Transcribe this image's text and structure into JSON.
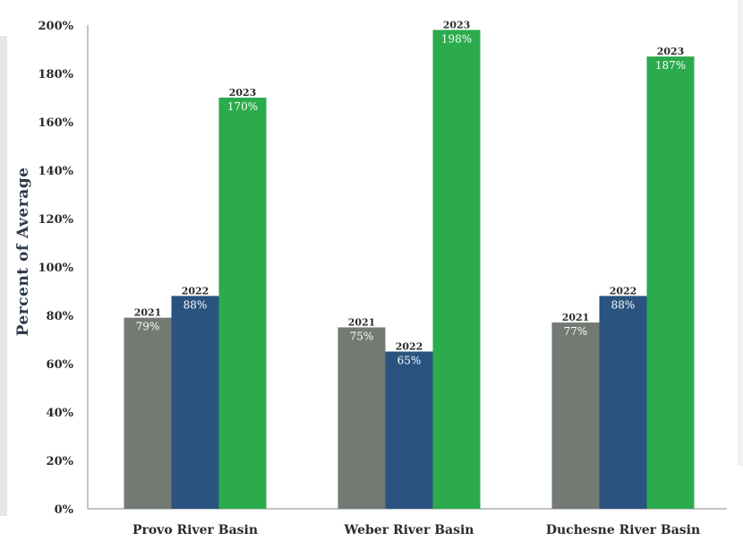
{
  "chart_data": {
    "type": "bar",
    "ylabel": "Percent of Average",
    "ylim": [
      0,
      200
    ],
    "yticks": [
      "0%",
      "20%",
      "40%",
      "60%",
      "80%",
      "100%",
      "120%",
      "140%",
      "160%",
      "180%",
      "200%"
    ],
    "categories": [
      "Provo River Basin",
      "Weber River Basin",
      "Duchesne River Basin"
    ],
    "series": [
      {
        "name": "2021",
        "color": "#737973",
        "values": [
          79,
          75,
          77
        ],
        "labels": [
          "79%",
          "75%",
          "77%"
        ]
      },
      {
        "name": "2022",
        "color": "#2a5380",
        "values": [
          88,
          65,
          88
        ],
        "labels": [
          "88%",
          "65%",
          "88%"
        ]
      },
      {
        "name": "2023",
        "color": "#2bab4c",
        "values": [
          170,
          198,
          187
        ],
        "labels": [
          "170%",
          "198%",
          "187%"
        ]
      }
    ],
    "grid": false,
    "legend": "none"
  }
}
